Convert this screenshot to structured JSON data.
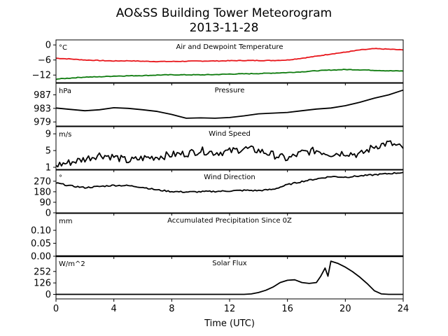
{
  "figure": {
    "title_line1": "AO&SS Building Tower Meteorogram",
    "title_line2": "2013-11-28",
    "xlabel": "Time (UTC)"
  },
  "x_axis": {
    "range": [
      0,
      24
    ],
    "ticks": [
      0,
      4,
      8,
      12,
      16,
      20,
      24
    ],
    "tick_labels": [
      "0",
      "4",
      "8",
      "12",
      "16",
      "20",
      "24"
    ]
  },
  "chart_data": [
    {
      "type": "line",
      "title": "Air and Dewpoint Temperature",
      "unit": "°C",
      "ylim": [
        -15,
        2
      ],
      "yticks": [
        0,
        -6,
        -12
      ],
      "ytick_labels": [
        "0",
        "−6",
        "−12"
      ],
      "series": [
        {
          "color": "#e8161b",
          "x": [
            0,
            1,
            2,
            3,
            4,
            5,
            6,
            7,
            8,
            9,
            10,
            11,
            12,
            13,
            14,
            15,
            16,
            17,
            18,
            19,
            20,
            21,
            22,
            23,
            24
          ],
          "values": [
            -5.3,
            -5.6,
            -6.0,
            -6.2,
            -6.4,
            -6.3,
            -6.5,
            -6.6,
            -6.6,
            -6.5,
            -6.4,
            -6.4,
            -6.3,
            -6.2,
            -6.2,
            -6.2,
            -6.0,
            -5.3,
            -4.5,
            -3.6,
            -2.9,
            -2.0,
            -1.5,
            -1.7,
            -2.0
          ]
        },
        {
          "color": "#0c7a0c",
          "x": [
            0,
            1,
            2,
            3,
            4,
            5,
            6,
            7,
            8,
            9,
            10,
            11,
            12,
            13,
            14,
            15,
            16,
            17,
            18,
            19,
            20,
            21,
            22,
            23,
            24
          ],
          "values": [
            -13.6,
            -13.2,
            -12.8,
            -12.7,
            -12.4,
            -12.3,
            -12.2,
            -12.0,
            -11.9,
            -11.9,
            -11.9,
            -11.8,
            -11.6,
            -11.5,
            -11.4,
            -11.2,
            -11.0,
            -10.7,
            -10.3,
            -10.0,
            -9.8,
            -9.9,
            -10.1,
            -10.3,
            -10.4
          ]
        }
      ]
    },
    {
      "type": "line",
      "title": "Pressure",
      "unit": "hPa",
      "ylim": [
        977.8,
        990.4
      ],
      "yticks": [
        987,
        983,
        979
      ],
      "ytick_labels": [
        "987",
        "983",
        "979"
      ],
      "series": [
        {
          "color": "#000000",
          "x": [
            0,
            1,
            2,
            3,
            4,
            5,
            6,
            7,
            8,
            9,
            10,
            11,
            12,
            13,
            14,
            15,
            16,
            17,
            18,
            19,
            20,
            21,
            22,
            23,
            24
          ],
          "values": [
            983.1,
            982.7,
            982.3,
            982.6,
            983.2,
            983.0,
            982.6,
            982.1,
            981.2,
            980.1,
            980.2,
            980.1,
            980.3,
            980.8,
            981.4,
            981.6,
            981.8,
            982.3,
            982.8,
            983.1,
            983.8,
            984.8,
            986.0,
            987.0,
            988.4
          ]
        }
      ]
    },
    {
      "type": "line",
      "title": "Wind Speed",
      "unit": "m/s",
      "ylim": [
        0.5,
        10.7
      ],
      "yticks": [
        9,
        5,
        1
      ],
      "ytick_labels": [
        "9",
        "5",
        "1"
      ],
      "series": [
        {
          "color": "#000000",
          "x": [
            0,
            1,
            2,
            3,
            4,
            5,
            6,
            7,
            8,
            9,
            10,
            11,
            12,
            13,
            14,
            15,
            16,
            17,
            18,
            19,
            20,
            21,
            22,
            23,
            24
          ],
          "values": [
            1.5,
            2.2,
            3.0,
            4.0,
            3.5,
            2.5,
            3.2,
            3.5,
            4.0,
            4.3,
            5.0,
            4.5,
            4.8,
            5.5,
            5.0,
            4.0,
            3.0,
            4.5,
            5.0,
            4.2,
            4.5,
            4.0,
            6.0,
            6.8,
            5.5
          ]
        }
      ]
    },
    {
      "type": "line",
      "title": "Wind Direction",
      "unit": "°",
      "ylim": [
        0,
        365
      ],
      "yticks": [
        270,
        180,
        90,
        0
      ],
      "ytick_labels": [
        "270",
        "180",
        "90",
        "0"
      ],
      "series": [
        {
          "color": "#000000",
          "x": [
            0,
            1,
            2,
            3,
            4,
            5,
            6,
            7,
            8,
            9,
            10,
            11,
            12,
            13,
            14,
            15,
            16,
            17,
            18,
            19,
            20,
            21,
            22,
            23,
            24
          ],
          "values": [
            255,
            230,
            215,
            225,
            235,
            232,
            218,
            195,
            182,
            178,
            180,
            183,
            187,
            192,
            190,
            200,
            240,
            268,
            290,
            310,
            305,
            315,
            325,
            335,
            345
          ]
        }
      ]
    },
    {
      "type": "line",
      "title": "Accumulated Precipitation Since 0Z",
      "unit": "mm",
      "ylim": [
        0,
        0.165
      ],
      "yticks": [
        0.1,
        0.05,
        0.0
      ],
      "ytick_labels": [
        "0.10",
        "0.05",
        "0.00"
      ],
      "series": [
        {
          "color": "#000000",
          "x": [
            0,
            24
          ],
          "values": [
            0,
            0
          ]
        }
      ]
    },
    {
      "type": "line",
      "title": "Solar Flux",
      "unit": "W/m^2",
      "ylim": [
        -50,
        420
      ],
      "yticks": [
        252,
        126,
        0
      ],
      "ytick_labels": [
        "252",
        "126",
        "0"
      ],
      "series": [
        {
          "color": "#000000",
          "x": [
            0,
            13,
            13.5,
            14,
            14.5,
            15,
            15.5,
            16,
            16.5,
            17,
            17.5,
            18,
            18.3,
            18.6,
            18.8,
            19,
            19.5,
            20,
            20.5,
            21,
            21.5,
            22,
            22.5,
            23,
            24
          ],
          "values": [
            0,
            0,
            5,
            20,
            45,
            80,
            130,
            155,
            160,
            130,
            120,
            130,
            200,
            290,
            200,
            365,
            340,
            300,
            250,
            190,
            120,
            40,
            5,
            0,
            0
          ]
        }
      ]
    }
  ]
}
